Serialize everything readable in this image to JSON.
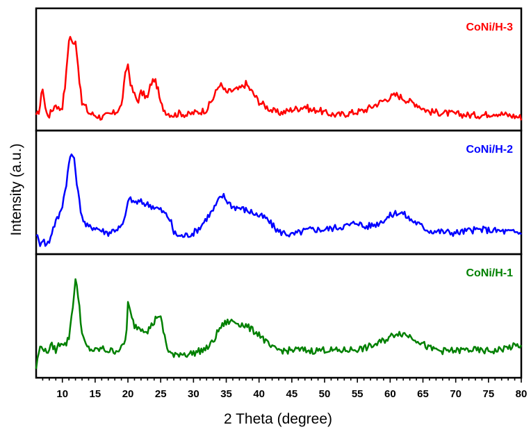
{
  "chart_data": {
    "type": "line",
    "xlabel": "2 Theta (degree)",
    "ylabel": "Intensity (a.u.)",
    "xlim": [
      6,
      80
    ],
    "x_ticks": [
      "10",
      "15",
      "20",
      "25",
      "30",
      "35",
      "40",
      "45",
      "50",
      "55",
      "60",
      "65",
      "70",
      "75",
      "80"
    ],
    "y_ticks_shown": false,
    "grid": false,
    "series": [
      {
        "name": "CoNi/H-3",
        "color": "#ff0000",
        "x": [
          6,
          6.5,
          7,
          7.5,
          8,
          8.5,
          9,
          9.5,
          10,
          10.5,
          11,
          11.3,
          11.7,
          12,
          12.3,
          12.7,
          13,
          13.5,
          14,
          15,
          16,
          17,
          18,
          19,
          19.7,
          20,
          20.5,
          21,
          21.5,
          22,
          22.5,
          23,
          23.5,
          24,
          24.5,
          25,
          25.5,
          26,
          27,
          28,
          29,
          30,
          31,
          32,
          33,
          34,
          35,
          36,
          37,
          38,
          38.5,
          39,
          40,
          41,
          42,
          43,
          44,
          45,
          46,
          47,
          48,
          49,
          50,
          52,
          54,
          56,
          58,
          60,
          61,
          62,
          63,
          64,
          65,
          66,
          68,
          70,
          72,
          74,
          76,
          78,
          80
        ],
        "y": [
          0.08,
          0.15,
          0.35,
          0.12,
          0.1,
          0.15,
          0.2,
          0.15,
          0.18,
          0.4,
          0.78,
          0.8,
          0.7,
          0.78,
          0.6,
          0.35,
          0.2,
          0.18,
          0.12,
          0.1,
          0.08,
          0.1,
          0.12,
          0.18,
          0.5,
          0.55,
          0.35,
          0.28,
          0.22,
          0.3,
          0.28,
          0.25,
          0.38,
          0.42,
          0.35,
          0.2,
          0.15,
          0.12,
          0.1,
          0.12,
          0.1,
          0.12,
          0.13,
          0.15,
          0.25,
          0.38,
          0.3,
          0.32,
          0.33,
          0.38,
          0.34,
          0.3,
          0.22,
          0.18,
          0.14,
          0.12,
          0.13,
          0.15,
          0.16,
          0.18,
          0.14,
          0.15,
          0.12,
          0.1,
          0.12,
          0.14,
          0.2,
          0.26,
          0.28,
          0.25,
          0.22,
          0.2,
          0.16,
          0.13,
          0.12,
          0.11,
          0.1,
          0.1,
          0.12,
          0.1,
          0.08
        ]
      },
      {
        "name": "CoNi/H-2",
        "color": "#0000ff",
        "x": [
          6,
          6.5,
          7,
          7.5,
          8,
          8.5,
          9,
          9.5,
          10,
          10.5,
          11,
          11.3,
          11.7,
          12,
          12.5,
          13,
          13.5,
          14,
          15,
          16,
          17,
          18,
          19,
          19.7,
          20,
          21,
          22,
          23,
          24,
          25,
          26,
          26.5,
          27,
          28,
          29,
          30,
          31,
          32,
          33,
          34,
          34.5,
          35,
          36,
          37,
          38,
          39,
          40,
          41,
          42,
          43,
          44,
          45,
          46,
          47,
          48,
          50,
          52,
          54,
          55,
          56,
          58,
          60,
          61,
          62,
          63,
          64,
          65,
          66,
          68,
          70,
          72,
          74,
          76,
          78,
          80
        ],
        "y": [
          0.15,
          0.05,
          0.1,
          0.04,
          0.08,
          0.18,
          0.25,
          0.3,
          0.4,
          0.55,
          0.75,
          0.85,
          0.82,
          0.7,
          0.45,
          0.3,
          0.22,
          0.2,
          0.2,
          0.17,
          0.15,
          0.18,
          0.2,
          0.3,
          0.45,
          0.42,
          0.42,
          0.4,
          0.38,
          0.35,
          0.3,
          0.26,
          0.15,
          0.12,
          0.13,
          0.15,
          0.2,
          0.28,
          0.35,
          0.45,
          0.48,
          0.44,
          0.38,
          0.37,
          0.35,
          0.33,
          0.3,
          0.28,
          0.22,
          0.16,
          0.15,
          0.13,
          0.15,
          0.17,
          0.18,
          0.18,
          0.2,
          0.22,
          0.25,
          0.2,
          0.23,
          0.3,
          0.33,
          0.32,
          0.27,
          0.24,
          0.2,
          0.17,
          0.16,
          0.15,
          0.17,
          0.18,
          0.17,
          0.16,
          0.15
        ]
      },
      {
        "name": "CoNi/H-1",
        "color": "#008000",
        "x": [
          6,
          6.5,
          7,
          7.5,
          8,
          8.5,
          9,
          9.5,
          10,
          10.5,
          11,
          11.5,
          12,
          12.5,
          13,
          13.5,
          14,
          15,
          16,
          17,
          18,
          19,
          19.7,
          20,
          20.5,
          21,
          22,
          23,
          24,
          24.5,
          25,
          25.5,
          26,
          27,
          28,
          29,
          30,
          31,
          32,
          33,
          34,
          35,
          36,
          37,
          38,
          39,
          40,
          41,
          42,
          44,
          46,
          48,
          50,
          52,
          54,
          56,
          58,
          60,
          61,
          62,
          63,
          64,
          65,
          66,
          68,
          70,
          72,
          74,
          76,
          78,
          80
        ],
        "y": [
          0.05,
          0.22,
          0.24,
          0.18,
          0.22,
          0.25,
          0.2,
          0.26,
          0.28,
          0.25,
          0.32,
          0.55,
          0.82,
          0.65,
          0.35,
          0.25,
          0.22,
          0.2,
          0.22,
          0.2,
          0.2,
          0.22,
          0.3,
          0.62,
          0.5,
          0.42,
          0.4,
          0.38,
          0.45,
          0.52,
          0.48,
          0.35,
          0.22,
          0.15,
          0.18,
          0.17,
          0.18,
          0.2,
          0.22,
          0.28,
          0.4,
          0.45,
          0.46,
          0.44,
          0.42,
          0.38,
          0.35,
          0.28,
          0.22,
          0.2,
          0.21,
          0.2,
          0.21,
          0.2,
          0.21,
          0.22,
          0.26,
          0.32,
          0.36,
          0.35,
          0.33,
          0.3,
          0.26,
          0.22,
          0.2,
          0.2,
          0.21,
          0.2,
          0.2,
          0.23,
          0.25
        ]
      }
    ]
  }
}
